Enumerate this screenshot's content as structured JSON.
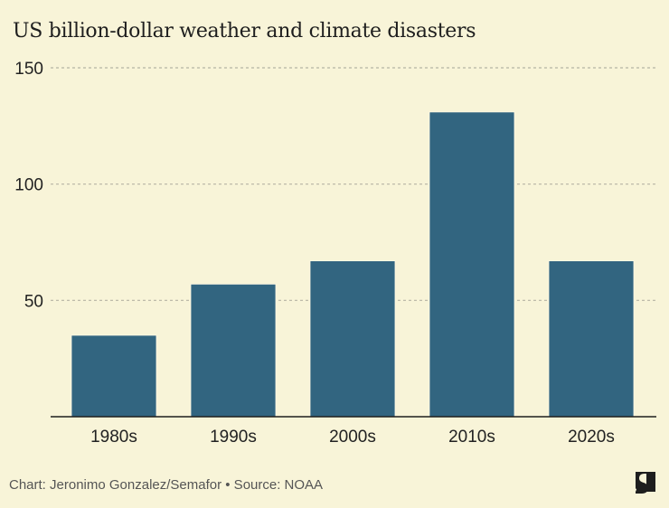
{
  "chart_data": {
    "type": "bar",
    "title": "US billion-dollar weather and climate disasters",
    "xlabel": "",
    "ylabel": "",
    "categories": [
      "1980s",
      "1990s",
      "2000s",
      "2010s",
      "2020s"
    ],
    "values": [
      35,
      57,
      67,
      131,
      67
    ],
    "ylim": [
      0,
      150
    ],
    "yticks": [
      50,
      100,
      150
    ],
    "grid": true,
    "bar_color": "#326580",
    "legend": "none"
  },
  "footer": {
    "credit": "Chart: Jeronimo Gonzalez/Semafor • Source: NOAA"
  },
  "logo": {
    "icon": "semafor-logo-icon"
  },
  "colors": {
    "background": "#f8f4d8",
    "bar": "#326580",
    "grid": "#b5b3a3",
    "axis": "#1e1e1e"
  }
}
